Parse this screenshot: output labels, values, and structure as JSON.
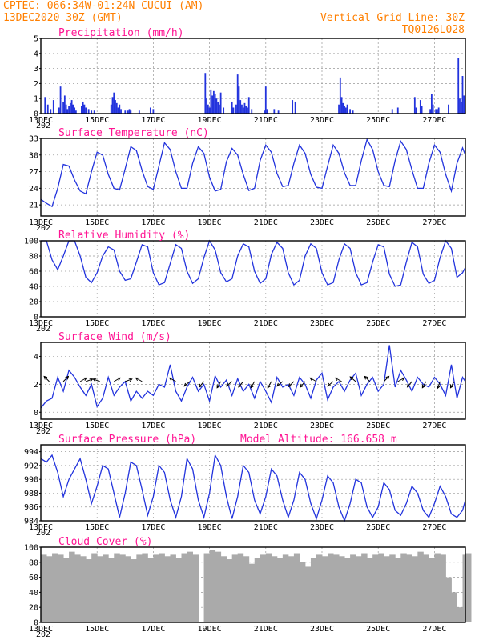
{
  "header": {
    "left_line1": "CPTEC:   066:34W-01:24N  CUCUI (AM)",
    "left_line2": "13DEC2020 30Z (GMT)",
    "right_line1": "Vertical Grid Line: 30Z",
    "right_line2": "TQ0126L028"
  },
  "colors": {
    "header": "#ff7f00",
    "titles": "#ff1493",
    "series": "#2233dd",
    "cloud": "#aaaaaa"
  },
  "x_axis": {
    "start_day": 13,
    "end_day": 28.1,
    "tick_labels": [
      "13DEC",
      "15DEC",
      "17DEC",
      "19DEC",
      "21DEC",
      "23DEC",
      "25DEC",
      "27DEC"
    ],
    "tick_days": [
      13,
      15,
      17,
      19,
      21,
      23,
      25,
      27
    ],
    "sub_label": "202"
  },
  "chart_data": [
    {
      "id": "precip",
      "type": "bar",
      "title": "Precipitation (mm/h)",
      "ylim": [
        0,
        5
      ],
      "yticks": [
        0,
        1,
        2,
        3,
        4,
        5
      ],
      "x": [
        13.15,
        13.25,
        13.35,
        13.45,
        13.65,
        13.7,
        13.8,
        13.85,
        13.9,
        13.95,
        14.0,
        14.05,
        14.1,
        14.15,
        14.2,
        14.25,
        14.45,
        14.5,
        14.55,
        14.6,
        14.7,
        14.8,
        14.9,
        15.5,
        15.55,
        15.6,
        15.65,
        15.7,
        15.75,
        15.8,
        15.85,
        16.0,
        16.1,
        16.15,
        16.2,
        16.5,
        16.9,
        17.0,
        18.85,
        18.9,
        18.95,
        19.0,
        19.05,
        19.1,
        19.15,
        19.2,
        19.25,
        19.3,
        19.35,
        19.4,
        19.5,
        19.8,
        19.85,
        19.95,
        20.0,
        20.05,
        20.1,
        20.15,
        20.2,
        20.25,
        20.3,
        20.35,
        20.4,
        20.5,
        20.95,
        21.0,
        21.05,
        21.3,
        21.45,
        21.95,
        22.05,
        23.6,
        23.65,
        23.7,
        23.75,
        23.8,
        23.85,
        23.9,
        24.0,
        24.1,
        25.5,
        25.7,
        26.3,
        26.35,
        26.5,
        26.55,
        26.85,
        26.9,
        26.95,
        27.05,
        27.1,
        27.15,
        27.5,
        27.85,
        27.9,
        27.95,
        28.0,
        28.05
      ],
      "values": [
        1.1,
        0.6,
        0.3,
        0.9,
        0.4,
        1.8,
        0.8,
        1.2,
        0.6,
        0.3,
        0.5,
        0.7,
        0.9,
        0.6,
        0.4,
        0.2,
        0.5,
        0.8,
        0.6,
        0.4,
        0.3,
        0.2,
        0.2,
        0.6,
        1.1,
        1.4,
        0.9,
        0.7,
        0.4,
        0.6,
        0.3,
        0.2,
        0.2,
        0.3,
        0.2,
        0.2,
        0.4,
        0.3,
        2.7,
        1.0,
        0.6,
        0.4,
        1.6,
        1.2,
        1.5,
        1.3,
        1.0,
        0.8,
        0.6,
        1.4,
        0.4,
        0.8,
        0.4,
        0.6,
        2.6,
        1.8,
        0.9,
        0.6,
        0.4,
        0.7,
        0.5,
        0.4,
        1.1,
        0.3,
        0.2,
        1.8,
        0.3,
        0.3,
        0.2,
        0.9,
        0.8,
        0.6,
        2.4,
        1.1,
        0.7,
        0.5,
        0.4,
        0.6,
        0.3,
        0.2,
        0.3,
        0.4,
        1.1,
        0.4,
        0.9,
        0.5,
        0.3,
        1.3,
        0.6,
        0.3,
        0.3,
        0.4,
        0.6,
        3.7,
        1.0,
        0.8,
        2.5,
        1.2
      ]
    },
    {
      "id": "temp",
      "type": "line",
      "title": "Surface Temperature (nC)",
      "ylim": [
        19,
        33
      ],
      "yticks": [
        21,
        24,
        27,
        30,
        33
      ],
      "x": [
        13.0,
        13.2,
        13.4,
        13.6,
        13.8,
        14.0,
        14.2,
        14.4,
        14.6,
        14.8,
        15.0,
        15.2,
        15.4,
        15.6,
        15.8,
        16.0,
        16.2,
        16.4,
        16.6,
        16.8,
        17.0,
        17.2,
        17.4,
        17.6,
        17.8,
        18.0,
        18.2,
        18.4,
        18.6,
        18.8,
        19.0,
        19.2,
        19.4,
        19.6,
        19.8,
        20.0,
        20.2,
        20.4,
        20.6,
        20.8,
        21.0,
        21.2,
        21.4,
        21.6,
        21.8,
        22.0,
        22.2,
        22.4,
        22.6,
        22.8,
        23.0,
        23.2,
        23.4,
        23.6,
        23.8,
        24.0,
        24.2,
        24.4,
        24.6,
        24.8,
        25.0,
        25.2,
        25.4,
        25.6,
        25.8,
        26.0,
        26.2,
        26.4,
        26.6,
        26.8,
        27.0,
        27.2,
        27.4,
        27.6,
        27.8,
        28.0,
        28.1
      ],
      "values": [
        22.0,
        21.3,
        20.7,
        24.0,
        28.3,
        28.0,
        25.5,
        23.5,
        23.0,
        27.0,
        30.5,
        30.0,
        26.5,
        24.0,
        23.7,
        27.5,
        31.5,
        30.8,
        27.2,
        24.3,
        23.8,
        28.0,
        32.2,
        31.0,
        27.0,
        24.0,
        24.0,
        28.5,
        31.5,
        30.3,
        26.0,
        23.5,
        23.8,
        28.8,
        31.2,
        30.0,
        26.5,
        23.6,
        24.0,
        29.0,
        31.8,
        30.5,
        26.7,
        24.3,
        24.5,
        28.5,
        31.8,
        30.3,
        26.5,
        24.2,
        24.0,
        28.0,
        31.8,
        30.3,
        26.8,
        24.5,
        24.5,
        29.0,
        32.8,
        31.0,
        27.0,
        24.5,
        24.3,
        29.0,
        32.5,
        31.0,
        27.3,
        24.0,
        24.0,
        28.5,
        31.8,
        30.5,
        26.5,
        23.5,
        28.5,
        31.3,
        30.0
      ]
    },
    {
      "id": "rh",
      "type": "line",
      "title": "Relative Humidity (%)",
      "ylim": [
        0,
        100
      ],
      "yticks": [
        0,
        20,
        40,
        60,
        80,
        100
      ],
      "x": [
        13.0,
        13.2,
        13.4,
        13.6,
        13.8,
        14.0,
        14.2,
        14.4,
        14.6,
        14.8,
        15.0,
        15.2,
        15.4,
        15.6,
        15.8,
        16.0,
        16.2,
        16.4,
        16.6,
        16.8,
        17.0,
        17.2,
        17.4,
        17.6,
        17.8,
        18.0,
        18.2,
        18.4,
        18.6,
        18.8,
        19.0,
        19.2,
        19.4,
        19.6,
        19.8,
        20.0,
        20.2,
        20.4,
        20.6,
        20.8,
        21.0,
        21.2,
        21.4,
        21.6,
        21.8,
        22.0,
        22.2,
        22.4,
        22.6,
        22.8,
        23.0,
        23.2,
        23.4,
        23.6,
        23.8,
        24.0,
        24.2,
        24.4,
        24.6,
        24.8,
        25.0,
        25.2,
        25.4,
        25.6,
        25.8,
        26.0,
        26.2,
        26.4,
        26.6,
        26.8,
        27.0,
        27.2,
        27.4,
        27.6,
        27.8,
        28.0,
        28.1
      ],
      "values": [
        100,
        100,
        75,
        62,
        80,
        100,
        100,
        80,
        52,
        45,
        58,
        80,
        92,
        88,
        60,
        48,
        50,
        72,
        95,
        92,
        58,
        42,
        45,
        70,
        95,
        90,
        60,
        44,
        50,
        78,
        100,
        88,
        58,
        46,
        50,
        80,
        96,
        92,
        60,
        44,
        50,
        82,
        98,
        90,
        58,
        42,
        48,
        80,
        96,
        90,
        58,
        42,
        45,
        75,
        96,
        90,
        58,
        42,
        45,
        72,
        95,
        92,
        56,
        40,
        42,
        72,
        98,
        92,
        56,
        44,
        48,
        78,
        100,
        90,
        52,
        58,
        65
      ]
    },
    {
      "id": "wind",
      "type": "line",
      "title": "Surface Wind (m/s)",
      "ylim": [
        -0.5,
        5
      ],
      "yticks": [
        0,
        2,
        4
      ],
      "x": [
        13.0,
        13.2,
        13.4,
        13.6,
        13.8,
        14.0,
        14.2,
        14.4,
        14.6,
        14.8,
        15.0,
        15.2,
        15.4,
        15.6,
        15.8,
        16.0,
        16.2,
        16.4,
        16.6,
        16.8,
        17.0,
        17.2,
        17.4,
        17.6,
        17.8,
        18.0,
        18.2,
        18.4,
        18.6,
        18.8,
        19.0,
        19.2,
        19.4,
        19.6,
        19.8,
        20.0,
        20.2,
        20.4,
        20.6,
        20.8,
        21.0,
        21.2,
        21.4,
        21.6,
        21.8,
        22.0,
        22.2,
        22.4,
        22.6,
        22.8,
        23.0,
        23.2,
        23.4,
        23.6,
        23.8,
        24.0,
        24.2,
        24.4,
        24.6,
        24.8,
        25.0,
        25.2,
        25.4,
        25.6,
        25.8,
        26.0,
        26.2,
        26.4,
        26.6,
        26.8,
        27.0,
        27.2,
        27.4,
        27.6,
        27.8,
        28.0,
        28.1
      ],
      "values": [
        0.3,
        0.8,
        1.0,
        2.5,
        1.5,
        3.0,
        2.5,
        1.8,
        1.2,
        2.0,
        0.4,
        1.0,
        2.5,
        1.2,
        1.8,
        2.2,
        0.8,
        1.5,
        1.0,
        1.5,
        1.2,
        2.0,
        1.8,
        3.4,
        1.5,
        0.8,
        1.8,
        2.5,
        1.5,
        2.0,
        0.8,
        2.6,
        1.8,
        2.3,
        1.2,
        2.4,
        1.5,
        2.0,
        1.0,
        2.2,
        1.5,
        0.7,
        2.5,
        1.8,
        2.0,
        1.2,
        2.5,
        2.0,
        1.0,
        2.3,
        2.8,
        0.9,
        1.8,
        2.2,
        1.5,
        2.3,
        2.8,
        1.2,
        2.0,
        2.5,
        1.5,
        2.0,
        4.8,
        1.8,
        3.0,
        2.3,
        1.5,
        2.5,
        2.0,
        1.8,
        2.5,
        2.0,
        1.2,
        3.4,
        1.0,
        2.5,
        2.2
      ],
      "arrows_x": [
        13.3,
        13.8,
        14.4,
        14.6,
        15.1,
        15.6,
        16.0,
        16.6,
        17.8,
        18.3,
        18.8,
        19.4,
        19.8,
        20.2,
        20.6,
        21.2,
        21.6,
        22.0,
        22.4,
        22.8,
        23.4,
        23.7,
        24.2,
        24.7,
        25.2,
        25.7,
        26.2,
        26.7,
        27.2,
        27.7
      ],
      "arrows_dir": [
        -135,
        -45,
        -30,
        -20,
        -160,
        -30,
        -20,
        -150,
        -150,
        140,
        130,
        120,
        140,
        130,
        120,
        120,
        140,
        135,
        130,
        -150,
        140,
        -150,
        -140,
        -135,
        -45,
        -30,
        130,
        120,
        110,
        120
      ]
    },
    {
      "id": "pres",
      "type": "line",
      "title": "Surface Pressure (hPa)",
      "extra_label": "Model Altitude: 166.658  m",
      "ylim": [
        984,
        995
      ],
      "yticks": [
        984,
        986,
        988,
        990,
        992,
        994
      ],
      "x": [
        13.0,
        13.2,
        13.4,
        13.6,
        13.8,
        14.0,
        14.2,
        14.4,
        14.6,
        14.8,
        15.0,
        15.2,
        15.4,
        15.6,
        15.8,
        16.0,
        16.2,
        16.4,
        16.6,
        16.8,
        17.0,
        17.2,
        17.4,
        17.6,
        17.8,
        18.0,
        18.2,
        18.4,
        18.6,
        18.8,
        19.0,
        19.2,
        19.4,
        19.6,
        19.8,
        20.0,
        20.2,
        20.4,
        20.6,
        20.8,
        21.0,
        21.2,
        21.4,
        21.6,
        21.8,
        22.0,
        22.2,
        22.4,
        22.6,
        22.8,
        23.0,
        23.2,
        23.4,
        23.6,
        23.8,
        24.0,
        24.2,
        24.4,
        24.6,
        24.8,
        25.0,
        25.2,
        25.4,
        25.6,
        25.8,
        26.0,
        26.2,
        26.4,
        26.6,
        26.8,
        27.0,
        27.2,
        27.4,
        27.6,
        27.8,
        28.0,
        28.1
      ],
      "values": [
        993.0,
        992.5,
        993.5,
        991.0,
        987.5,
        990.0,
        991.5,
        993.0,
        990.0,
        986.5,
        989.0,
        992.0,
        991.5,
        988.0,
        984.5,
        988.0,
        992.5,
        992.0,
        988.5,
        984.8,
        987.5,
        992.0,
        991.0,
        987.0,
        984.5,
        987.5,
        993.0,
        991.5,
        987.0,
        984.5,
        988.0,
        993.5,
        992.0,
        987.5,
        984.3,
        987.5,
        992.0,
        991.0,
        987.0,
        985.0,
        987.5,
        991.5,
        990.5,
        987.0,
        984.5,
        987.0,
        991.0,
        990.0,
        986.5,
        984.3,
        987.0,
        990.5,
        989.5,
        986.0,
        984.0,
        986.5,
        990.0,
        989.5,
        986.0,
        984.5,
        986.0,
        989.5,
        988.5,
        985.5,
        984.8,
        986.5,
        989.0,
        988.0,
        985.5,
        984.5,
        986.5,
        989.0,
        987.5,
        985.0,
        984.5,
        985.5,
        987.0
      ]
    },
    {
      "id": "cloud",
      "type": "area",
      "title": "Cloud Cover (%)",
      "ylim": [
        0,
        100
      ],
      "yticks": [
        0,
        20,
        40,
        60,
        80,
        100
      ],
      "x": [
        13.0,
        13.2,
        13.4,
        13.6,
        13.8,
        14.0,
        14.2,
        14.4,
        14.6,
        14.8,
        15.0,
        15.2,
        15.4,
        15.6,
        15.8,
        16.0,
        16.2,
        16.4,
        16.6,
        16.8,
        17.0,
        17.2,
        17.4,
        17.6,
        17.8,
        18.0,
        18.2,
        18.4,
        18.6,
        18.8,
        19.0,
        19.2,
        19.4,
        19.6,
        19.8,
        20.0,
        20.2,
        20.4,
        20.6,
        20.8,
        21.0,
        21.2,
        21.4,
        21.6,
        21.8,
        22.0,
        22.2,
        22.4,
        22.6,
        22.8,
        23.0,
        23.2,
        23.4,
        23.6,
        23.8,
        24.0,
        24.2,
        24.4,
        24.6,
        24.8,
        25.0,
        25.2,
        25.4,
        25.6,
        25.8,
        26.0,
        26.2,
        26.4,
        26.6,
        26.8,
        27.0,
        27.2,
        27.4,
        27.6,
        27.8,
        28.0,
        28.1
      ],
      "values": [
        90,
        88,
        92,
        90,
        86,
        94,
        90,
        88,
        84,
        92,
        88,
        90,
        86,
        92,
        90,
        88,
        84,
        90,
        92,
        86,
        90,
        92,
        88,
        90,
        86,
        92,
        94,
        90,
        0,
        92,
        96,
        94,
        88,
        84,
        90,
        92,
        88,
        78,
        86,
        90,
        92,
        88,
        86,
        90,
        88,
        92,
        80,
        74,
        86,
        90,
        88,
        92,
        90,
        88,
        86,
        90,
        88,
        92,
        86,
        90,
        92,
        88,
        90,
        86,
        92,
        90,
        88,
        94,
        90,
        86,
        92,
        90,
        60,
        40,
        20,
        90,
        92
      ]
    }
  ]
}
